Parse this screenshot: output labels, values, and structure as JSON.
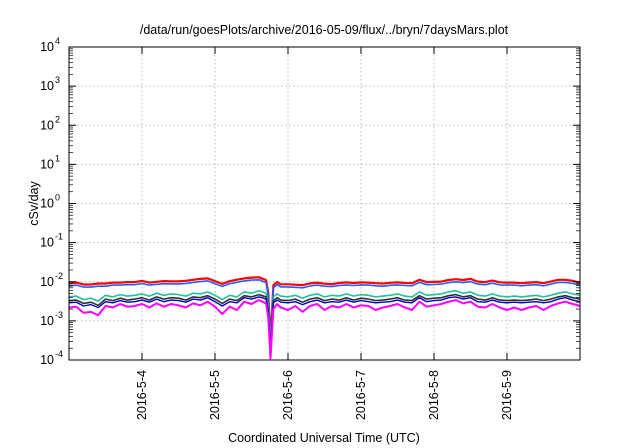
{
  "chart_data": {
    "type": "line",
    "title": "/data/run/goesPlots/archive/2016-05-09/flux/../bryn/7daysMars.plot",
    "xlabel": "Coordinated Universal Time (UTC)",
    "ylabel": "cSv/day",
    "yscale": "log",
    "ylim": [
      0.0001,
      10000
    ],
    "xlim": [
      0,
      7
    ],
    "grid": true,
    "legend": "none",
    "x_ticks": [
      {
        "x": 1,
        "label": "2016-5-4"
      },
      {
        "x": 2,
        "label": "2016-5-5"
      },
      {
        "x": 3,
        "label": "2016-5-6"
      },
      {
        "x": 4,
        "label": "2016-5-7"
      },
      {
        "x": 5,
        "label": "2016-5-8"
      },
      {
        "x": 6,
        "label": "2016-5-9"
      }
    ],
    "y_ticks": [
      {
        "value": 0.0001,
        "base": "10",
        "exp": "-4"
      },
      {
        "value": 0.001,
        "base": "10",
        "exp": "-3"
      },
      {
        "value": 0.01,
        "base": "10",
        "exp": "-2"
      },
      {
        "value": 0.1,
        "base": "10",
        "exp": "-1"
      },
      {
        "value": 1,
        "base": "10",
        "exp": "0"
      },
      {
        "value": 10,
        "base": "10",
        "exp": "1"
      },
      {
        "value": 100,
        "base": "10",
        "exp": "2"
      },
      {
        "value": 1000,
        "base": "10",
        "exp": "3"
      },
      {
        "value": 10000,
        "base": "10",
        "exp": "4"
      }
    ],
    "x": [
      0,
      0.1,
      0.2,
      0.3,
      0.4,
      0.5,
      0.6,
      0.7,
      0.8,
      0.9,
      1.0,
      1.1,
      1.2,
      1.3,
      1.4,
      1.5,
      1.6,
      1.7,
      1.8,
      1.9,
      2.0,
      2.1,
      2.2,
      2.3,
      2.4,
      2.5,
      2.6,
      2.65,
      2.7,
      2.73,
      2.76,
      2.8,
      2.85,
      2.9,
      3.0,
      3.1,
      3.2,
      3.3,
      3.4,
      3.5,
      3.6,
      3.7,
      3.8,
      3.9,
      4.0,
      4.1,
      4.2,
      4.3,
      4.4,
      4.5,
      4.6,
      4.7,
      4.8,
      4.9,
      5.0,
      5.1,
      5.2,
      5.3,
      5.4,
      5.5,
      5.6,
      5.7,
      5.8,
      5.9,
      6.0,
      6.1,
      6.2,
      6.3,
      6.4,
      6.5,
      6.6,
      6.7,
      6.8,
      6.9,
      7.0
    ],
    "series": [
      {
        "color": "#ff0000",
        "width": 2.2,
        "values": [
          0.009,
          0.0095,
          0.0085,
          0.0085,
          0.009,
          0.009,
          0.0095,
          0.0095,
          0.0098,
          0.0098,
          0.0105,
          0.0095,
          0.01,
          0.0104,
          0.0102,
          0.0102,
          0.0106,
          0.0112,
          0.0118,
          0.0122,
          0.0103,
          0.0088,
          0.0103,
          0.0113,
          0.0122,
          0.0128,
          0.013,
          0.012,
          0.011,
          0.005,
          0.0003,
          0.0082,
          0.0098,
          0.0086,
          0.0086,
          0.0084,
          0.0082,
          0.0091,
          0.0095,
          0.0089,
          0.0087,
          0.0093,
          0.0096,
          0.0093,
          0.0096,
          0.0095,
          0.0092,
          0.009,
          0.0094,
          0.0096,
          0.0093,
          0.0092,
          0.0112,
          0.0098,
          0.0099,
          0.0101,
          0.0111,
          0.0116,
          0.0111,
          0.0118,
          0.0101,
          0.0098,
          0.0107,
          0.0097,
          0.0095,
          0.0095,
          0.0092,
          0.0095,
          0.0098,
          0.0092,
          0.0101,
          0.0112,
          0.0112,
          0.0105,
          0.0095
        ]
      },
      {
        "color": "#2060ff",
        "width": 1.6,
        "values": [
          0.0077,
          0.0082,
          0.0073,
          0.0073,
          0.0077,
          0.0077,
          0.0082,
          0.0082,
          0.0084,
          0.0084,
          0.009,
          0.0082,
          0.0086,
          0.0089,
          0.0088,
          0.0088,
          0.0091,
          0.0096,
          0.0101,
          0.0105,
          0.0089,
          0.0076,
          0.0089,
          0.0097,
          0.0105,
          0.011,
          0.0112,
          0.0103,
          0.0095,
          0.0043,
          0.00026,
          0.007,
          0.0084,
          0.0074,
          0.0074,
          0.0072,
          0.007,
          0.0078,
          0.0082,
          0.0077,
          0.0075,
          0.008,
          0.0083,
          0.008,
          0.0083,
          0.0082,
          0.0079,
          0.0077,
          0.0081,
          0.0083,
          0.008,
          0.0079,
          0.0096,
          0.0084,
          0.0085,
          0.0087,
          0.0095,
          0.01,
          0.0095,
          0.0101,
          0.0087,
          0.0084,
          0.0092,
          0.0083,
          0.0082,
          0.0082,
          0.0079,
          0.0082,
          0.0084,
          0.0079,
          0.0087,
          0.0096,
          0.0096,
          0.009,
          0.0082
        ]
      },
      {
        "color": "#20c0a0",
        "width": 1.6,
        "values": [
          0.0041,
          0.0043,
          0.0035,
          0.0038,
          0.0032,
          0.0045,
          0.0041,
          0.0047,
          0.0043,
          0.0045,
          0.0049,
          0.0043,
          0.0051,
          0.0045,
          0.0049,
          0.0047,
          0.0043,
          0.0051,
          0.0049,
          0.0055,
          0.0045,
          0.0035,
          0.0045,
          0.0041,
          0.0055,
          0.0051,
          0.0059,
          0.0055,
          0.0051,
          0.0022,
          0.00022,
          0.0041,
          0.0049,
          0.0043,
          0.0041,
          0.0045,
          0.0038,
          0.0045,
          0.0049,
          0.0041,
          0.0045,
          0.0043,
          0.0049,
          0.0043,
          0.0047,
          0.0045,
          0.0041,
          0.0043,
          0.0045,
          0.0049,
          0.0043,
          0.0041,
          0.0055,
          0.0045,
          0.0047,
          0.0049,
          0.0055,
          0.0059,
          0.0051,
          0.0055,
          0.0045,
          0.0043,
          0.0049,
          0.0043,
          0.0041,
          0.0043,
          0.0041,
          0.0043,
          0.0045,
          0.0041,
          0.0045,
          0.0051,
          0.0055,
          0.0049,
          0.0045
        ]
      },
      {
        "color": "#303030",
        "width": 1.6,
        "values": [
          0.0033,
          0.0034,
          0.0028,
          0.003,
          0.0025,
          0.0036,
          0.0033,
          0.0038,
          0.0034,
          0.0036,
          0.0039,
          0.0034,
          0.0041,
          0.0036,
          0.0039,
          0.0038,
          0.0034,
          0.0041,
          0.0039,
          0.0044,
          0.0036,
          0.0028,
          0.0036,
          0.0033,
          0.0044,
          0.0041,
          0.0047,
          0.0044,
          0.0041,
          0.0018,
          0.00018,
          0.0033,
          0.0039,
          0.0034,
          0.0033,
          0.0036,
          0.003,
          0.0036,
          0.0039,
          0.0033,
          0.0036,
          0.0034,
          0.0039,
          0.0034,
          0.0038,
          0.0036,
          0.0033,
          0.0034,
          0.0036,
          0.0039,
          0.0034,
          0.0033,
          0.0044,
          0.0036,
          0.0038,
          0.0039,
          0.0044,
          0.0047,
          0.0041,
          0.0044,
          0.0036,
          0.0034,
          0.0039,
          0.0034,
          0.0033,
          0.0034,
          0.0033,
          0.0034,
          0.0036,
          0.0033,
          0.0036,
          0.0041,
          0.0044,
          0.0039,
          0.0036
        ]
      },
      {
        "color": "#0000c0",
        "width": 1.4,
        "values": [
          0.0029,
          0.003,
          0.0024,
          0.0026,
          0.0022,
          0.0031,
          0.0029,
          0.0033,
          0.003,
          0.0031,
          0.0034,
          0.003,
          0.0036,
          0.0031,
          0.0034,
          0.0033,
          0.003,
          0.0036,
          0.0034,
          0.0039,
          0.0031,
          0.0024,
          0.0031,
          0.0029,
          0.0039,
          0.0036,
          0.0041,
          0.0039,
          0.0036,
          0.0016,
          0.00016,
          0.0029,
          0.0034,
          0.003,
          0.0029,
          0.0031,
          0.0026,
          0.0031,
          0.0034,
          0.0029,
          0.0031,
          0.003,
          0.0034,
          0.003,
          0.0033,
          0.0031,
          0.0029,
          0.003,
          0.0031,
          0.0034,
          0.003,
          0.0029,
          0.0039,
          0.0031,
          0.0033,
          0.0034,
          0.0039,
          0.0041,
          0.0036,
          0.0039,
          0.0031,
          0.003,
          0.0034,
          0.003,
          0.0029,
          0.003,
          0.0029,
          0.003,
          0.0031,
          0.0029,
          0.0031,
          0.0036,
          0.0039,
          0.0034,
          0.0031
        ]
      },
      {
        "color": "#ff00ff",
        "width": 2.0,
        "values": [
          0.0022,
          0.0023,
          0.0016,
          0.0017,
          0.0014,
          0.0024,
          0.0022,
          0.0027,
          0.0023,
          0.0024,
          0.0027,
          0.0022,
          0.0028,
          0.0023,
          0.0027,
          0.0025,
          0.0022,
          0.0028,
          0.0025,
          0.0031,
          0.0023,
          0.0015,
          0.0023,
          0.0019,
          0.0031,
          0.0027,
          0.0034,
          0.0031,
          0.0028,
          0.0012,
          0.00011,
          0.002,
          0.0027,
          0.0022,
          0.0019,
          0.0024,
          0.0017,
          0.0024,
          0.0027,
          0.0019,
          0.0024,
          0.0022,
          0.0027,
          0.0022,
          0.0025,
          0.0024,
          0.0019,
          0.0022,
          0.0024,
          0.0027,
          0.0022,
          0.0019,
          0.0031,
          0.0023,
          0.0025,
          0.0027,
          0.0031,
          0.0034,
          0.0028,
          0.0031,
          0.0023,
          0.0022,
          0.0027,
          0.0022,
          0.0019,
          0.0022,
          0.0019,
          0.0022,
          0.0024,
          0.0019,
          0.0024,
          0.0028,
          0.0031,
          0.0027,
          0.0024
        ]
      }
    ]
  }
}
